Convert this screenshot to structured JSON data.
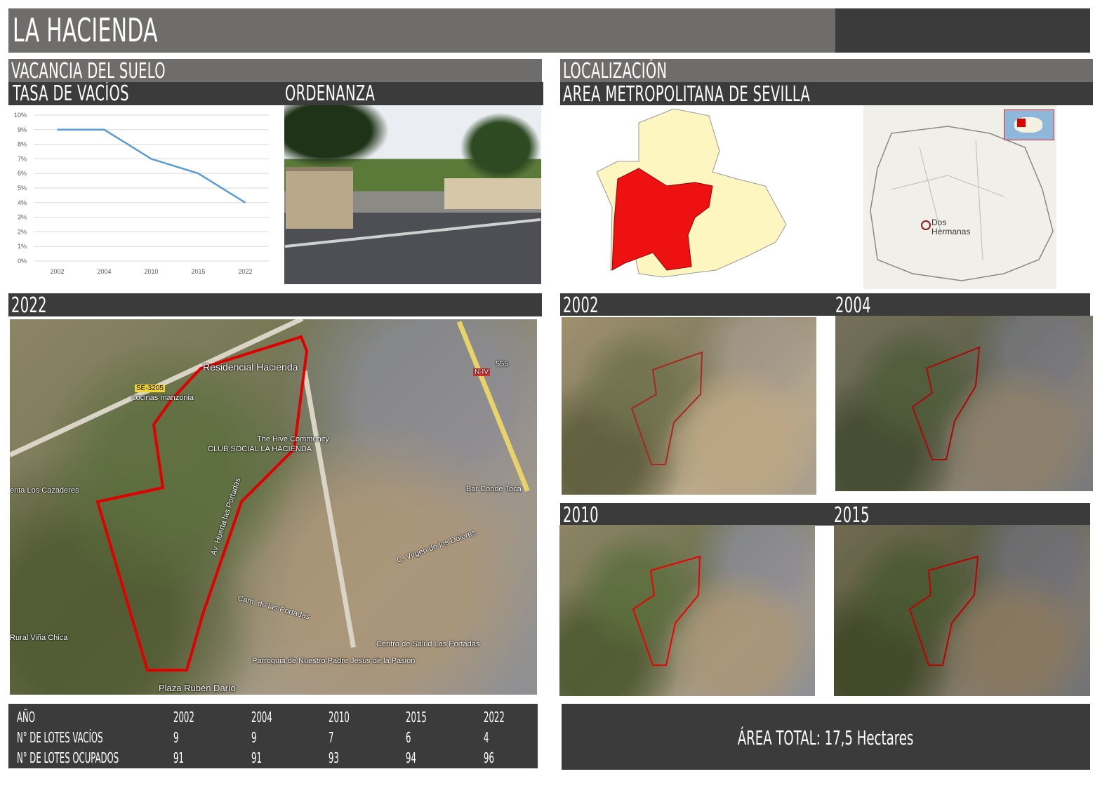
{
  "header": {
    "title": "LA HACIENDA"
  },
  "left_section": {
    "title": "VACANCIA DEL SUELO",
    "chart_title": "TASA DE VACÍOS",
    "photo_title": "ORDENANZA"
  },
  "right_section": {
    "title": "LOCALIZACIÓN",
    "subtitle": "AREA METROPOLITANA DE SEVILLA",
    "map_label": "Dos Hermanas"
  },
  "chart_data": {
    "type": "line",
    "categories": [
      "2002",
      "2004",
      "2010",
      "2015",
      "2022"
    ],
    "values": [
      9,
      9,
      7,
      6,
      4
    ],
    "y_unit": "%",
    "ylim": [
      0,
      10
    ],
    "yticks": [
      "0%",
      "1%",
      "2%",
      "3%",
      "4%",
      "5%",
      "6%",
      "7%",
      "8%",
      "9%",
      "10%"
    ],
    "grid": true,
    "line_color": "#5b9bd5"
  },
  "map2022": {
    "title": "2022",
    "labels": {
      "residencial": "Residencial Hacienda",
      "se3205": "SE-3205",
      "n4": "N-IV",
      "cocinas": "cocinas manzonia",
      "hive": "The Hive Community",
      "club": "CLUB SOCIAL LA HACIENDA",
      "bar": "Bar Conde Toca",
      "cazadores": "enta Los Cazaderes",
      "vina": "Rural Viña Chica",
      "portadas": "Av. Huerta las Portadas",
      "camino": "Cam. de las Portadas",
      "virgen": "C. Virgen de los Dolores",
      "salud": "Centro de Salud Las Portadas",
      "parroquia": "Parroquia de Nuestro Padre Jesús de la Pasión",
      "plaza": "Plaza Rubén Darío",
      "km": "555"
    },
    "boundary_color": "#e00000"
  },
  "historic": [
    {
      "year": "2002"
    },
    {
      "year": "2004"
    },
    {
      "year": "2010"
    },
    {
      "year": "2015"
    }
  ],
  "table": {
    "headers": [
      "AÑO",
      "2002",
      "2004",
      "2010",
      "2015",
      "2022"
    ],
    "rows": [
      [
        "N° DE LOTES VACÍOS",
        "9",
        "9",
        "7",
        "6",
        "4"
      ],
      [
        "N° DE LOTES OCUPADOS",
        "91",
        "91",
        "93",
        "94",
        "96"
      ]
    ]
  },
  "area_total": "ÁREA TOTAL: 17,5 Hectares"
}
